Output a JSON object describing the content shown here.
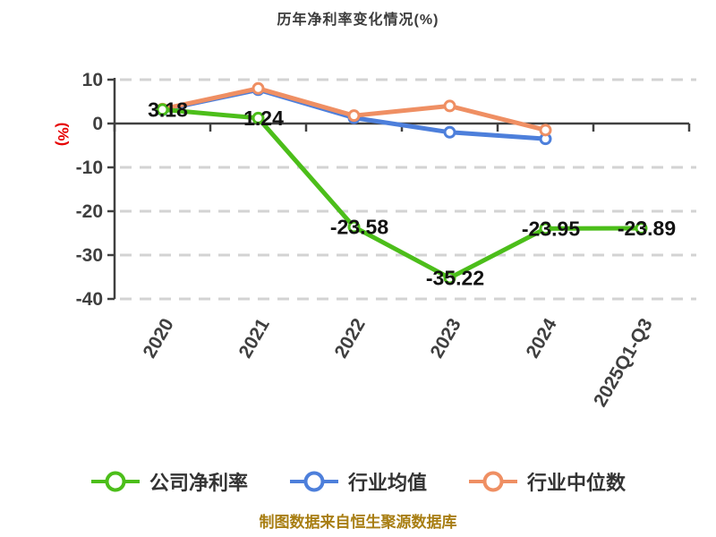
{
  "title": "历年净利率变化情况(%)",
  "y_axis_unit": "(%)",
  "footer_note": "制图数据来自恒生聚源数据库",
  "chart_data": {
    "type": "line",
    "title": "历年净利率变化情况(%)",
    "categories": [
      "2020",
      "2021",
      "2022",
      "2023",
      "2024",
      "2025Q1-Q3"
    ],
    "series": [
      {
        "name": "公司净利率",
        "color": "#4cbe1a",
        "values": [
          3.18,
          1.24,
          -23.58,
          -35.22,
          -23.95,
          -23.89
        ],
        "point_labels": [
          "3.18",
          "1.24",
          "-23.58",
          "-35.22",
          "-23.95",
          "-23.89"
        ]
      },
      {
        "name": "行业均值",
        "color": "#4d7fdb",
        "values": [
          3.1,
          7.7,
          1.3,
          -2.0,
          -3.5,
          null
        ],
        "point_labels": null
      },
      {
        "name": "行业中位数",
        "color": "#ef8f63",
        "values": [
          3.3,
          8.0,
          1.8,
          4.0,
          -1.5,
          null
        ],
        "point_labels": null
      }
    ],
    "ylim": [
      -40,
      10
    ],
    "yticks": [
      10,
      0,
      -10,
      -20,
      -30,
      -40
    ],
    "grid": true,
    "gridline_style": "dashed",
    "x_tick_rotation": -60,
    "legend_position": "bottom"
  },
  "colors": {
    "background": "#ffffff",
    "title_text": "#3b3b3b",
    "axis": "#404040",
    "tick_label": "#3f3f3f",
    "gridline": "#d3d3d3",
    "data_label": "#121212",
    "y_unit_label": "#e60000",
    "legend_label": "#333333",
    "footer_text": "#a87e12"
  }
}
